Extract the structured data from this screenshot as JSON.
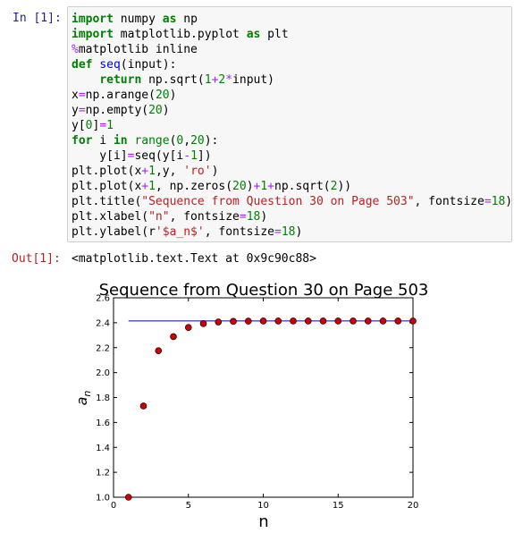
{
  "input_cell": {
    "prompt": "In [1]:",
    "lines": [
      [
        [
          "kw",
          "import"
        ],
        [
          "plain",
          " numpy "
        ],
        [
          "kw",
          "as"
        ],
        [
          "plain",
          " np"
        ]
      ],
      [
        [
          "kw",
          "import"
        ],
        [
          "plain",
          " matplotlib.pyplot "
        ],
        [
          "kw",
          "as"
        ],
        [
          "plain",
          " plt"
        ]
      ],
      [
        [
          "mag",
          "%"
        ],
        [
          "plain",
          "matplotlib inline"
        ]
      ],
      [
        [
          "kw",
          "def"
        ],
        [
          "plain",
          " "
        ],
        [
          "fn",
          "seq"
        ],
        [
          "plain",
          "(input):"
        ]
      ],
      [
        [
          "plain",
          "    "
        ],
        [
          "kw",
          "return"
        ],
        [
          "plain",
          " np.sqrt("
        ],
        [
          "num",
          "1"
        ],
        [
          "op",
          "+"
        ],
        [
          "num",
          "2"
        ],
        [
          "op",
          "*"
        ],
        [
          "plain",
          "input)"
        ]
      ],
      [
        [
          "plain",
          "x"
        ],
        [
          "op",
          "="
        ],
        [
          "plain",
          "np.arange("
        ],
        [
          "num",
          "20"
        ],
        [
          "plain",
          ")"
        ]
      ],
      [
        [
          "plain",
          "y"
        ],
        [
          "op",
          "="
        ],
        [
          "plain",
          "np.empty("
        ],
        [
          "num",
          "20"
        ],
        [
          "plain",
          ")"
        ]
      ],
      [
        [
          "plain",
          "y["
        ],
        [
          "num",
          "0"
        ],
        [
          "plain",
          "]"
        ],
        [
          "op",
          "="
        ],
        [
          "num",
          "1"
        ]
      ],
      [
        [
          "kw",
          "for"
        ],
        [
          "plain",
          " i "
        ],
        [
          "kw",
          "in"
        ],
        [
          "plain",
          " "
        ],
        [
          "bi",
          "range"
        ],
        [
          "plain",
          "("
        ],
        [
          "num",
          "0"
        ],
        [
          "plain",
          ","
        ],
        [
          "num",
          "20"
        ],
        [
          "plain",
          "):"
        ]
      ],
      [
        [
          "plain",
          "    y[i]"
        ],
        [
          "op",
          "="
        ],
        [
          "plain",
          "seq(y[i"
        ],
        [
          "op",
          "-"
        ],
        [
          "num",
          "1"
        ],
        [
          "plain",
          "])"
        ]
      ],
      [
        [
          "plain",
          "plt.plot(x"
        ],
        [
          "op",
          "+"
        ],
        [
          "num",
          "1"
        ],
        [
          "plain",
          ",y, "
        ],
        [
          "str",
          "'ro'"
        ],
        [
          "plain",
          ")"
        ]
      ],
      [
        [
          "plain",
          "plt.plot(x"
        ],
        [
          "op",
          "+"
        ],
        [
          "num",
          "1"
        ],
        [
          "plain",
          ", np.zeros("
        ],
        [
          "num",
          "20"
        ],
        [
          "plain",
          ")"
        ],
        [
          "op",
          "+"
        ],
        [
          "num",
          "1"
        ],
        [
          "op",
          "+"
        ],
        [
          "plain",
          "np.sqrt("
        ],
        [
          "num",
          "2"
        ],
        [
          "plain",
          "))"
        ]
      ],
      [
        [
          "plain",
          "plt.title("
        ],
        [
          "str",
          "\"Sequence from Question 30 on Page 503\""
        ],
        [
          "plain",
          ", fontsize"
        ],
        [
          "op",
          "="
        ],
        [
          "num",
          "18"
        ],
        [
          "plain",
          ")"
        ]
      ],
      [
        [
          "plain",
          "plt.xlabel("
        ],
        [
          "str",
          "\"n\""
        ],
        [
          "plain",
          ", fontsize"
        ],
        [
          "op",
          "="
        ],
        [
          "num",
          "18"
        ],
        [
          "plain",
          ")"
        ]
      ],
      [
        [
          "plain",
          "plt.ylabel(r"
        ],
        [
          "str",
          "'$a_n$'"
        ],
        [
          "plain",
          ", fontsize"
        ],
        [
          "op",
          "="
        ],
        [
          "num",
          "18"
        ],
        [
          "plain",
          ")"
        ]
      ]
    ]
  },
  "output_cell": {
    "prompt": "Out[1]:",
    "text": "<matplotlib.text.Text at 0x9c90c88>"
  },
  "colors": {
    "marker": "#cc0000",
    "line": "#0000aa"
  },
  "chart_data": {
    "type": "scatter",
    "title": "Sequence from Question 30 on Page 503",
    "xlabel": "n",
    "ylabel": "a",
    "ylabel_sub": "n",
    "xlim": [
      0,
      20
    ],
    "ylim": [
      1.0,
      2.6
    ],
    "xticks": [
      "0",
      "5",
      "10",
      "15",
      "20"
    ],
    "yticks": [
      "1.0",
      "1.2",
      "1.4",
      "1.6",
      "1.8",
      "2.0",
      "2.2",
      "2.4",
      "2.6"
    ],
    "series": [
      {
        "style": "red circle markers",
        "x": [
          1,
          2,
          3,
          4,
          5,
          6,
          7,
          8,
          9,
          10,
          11,
          12,
          13,
          14,
          15,
          16,
          17,
          18,
          19,
          20
        ],
        "y": [
          1.0,
          1.732,
          2.175,
          2.288,
          2.362,
          2.393,
          2.406,
          2.411,
          2.413,
          2.414,
          2.414,
          2.414,
          2.414,
          2.414,
          2.414,
          2.414,
          2.414,
          2.414,
          2.414,
          2.414
        ]
      },
      {
        "style": "blue line",
        "x": [
          1,
          20
        ],
        "y": [
          2.414,
          2.414
        ]
      }
    ]
  }
}
